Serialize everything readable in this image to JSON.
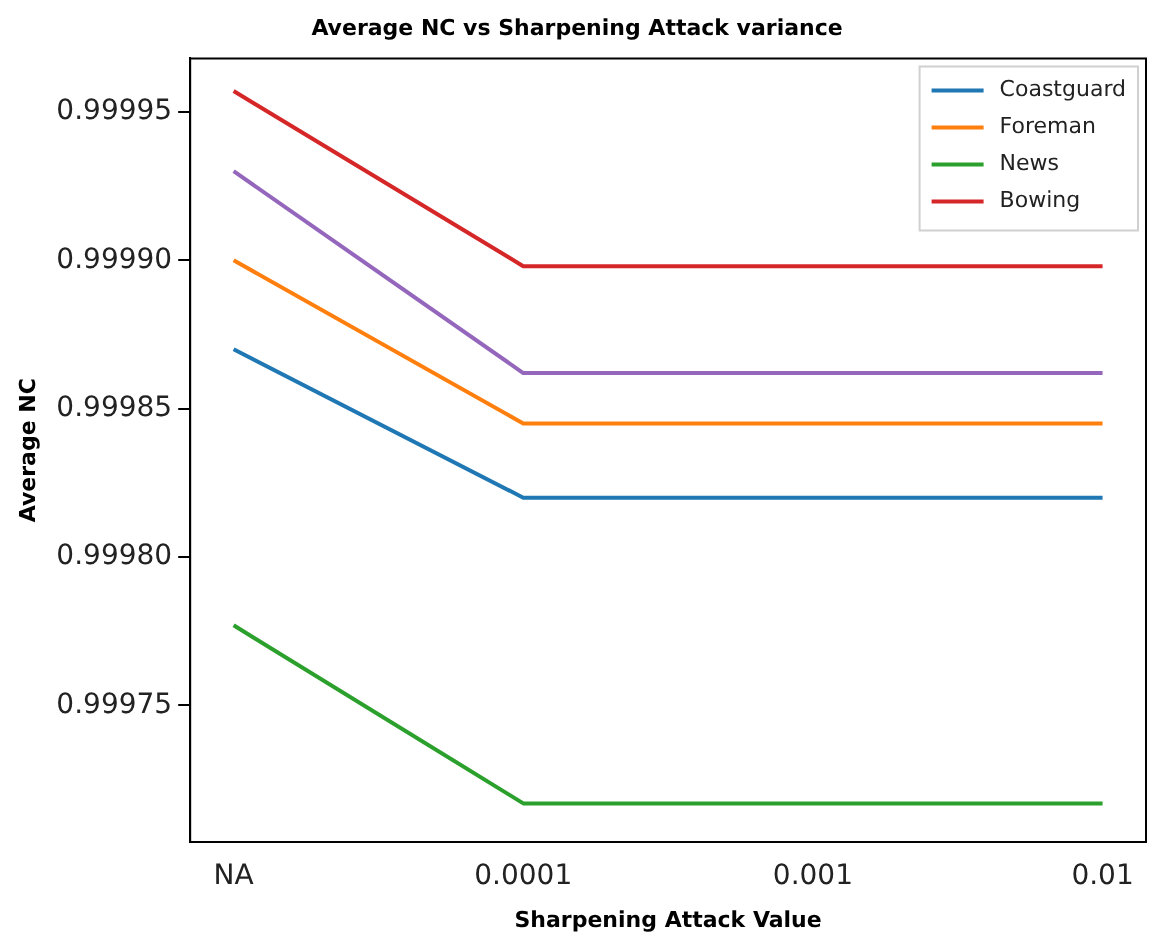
{
  "chart_data": {
    "type": "line",
    "title": "Average NC vs Sharpening Attack variance",
    "xlabel": "Sharpening Attack Value",
    "ylabel": "Average NC",
    "categories": [
      "NA",
      "0.0001",
      "0.001",
      "0.01"
    ],
    "series": [
      {
        "name": "Coastguard",
        "color": "#1f77b4",
        "values": [
          0.99987,
          0.99982,
          0.99982,
          0.99982
        ]
      },
      {
        "name": "Foreman",
        "color": "#ff7f0e",
        "values": [
          0.9999,
          0.999845,
          0.999845,
          0.999845
        ]
      },
      {
        "name": "News",
        "color": "#2ca02c",
        "values": [
          0.999777,
          0.999717,
          0.999717,
          0.999717
        ]
      },
      {
        "name": "Bowing",
        "color": "#d62728",
        "values": [
          0.999957,
          0.999898,
          0.999898,
          0.999898
        ]
      },
      {
        "color": "#9467bd",
        "values": [
          0.99993,
          0.999862,
          0.999862,
          0.999862
        ]
      }
    ],
    "ylim": [
      0.999704,
      0.999968
    ],
    "yticks": [
      0.99975,
      {
        "value": 0.9998,
        "label": "0.99980"
      },
      0.99985,
      {
        "value": 0.9999,
        "label": "0.99990"
      },
      0.99995
    ],
    "legend": "top right",
    "grid": false,
    "marker": "none",
    "line_style": "solid"
  }
}
